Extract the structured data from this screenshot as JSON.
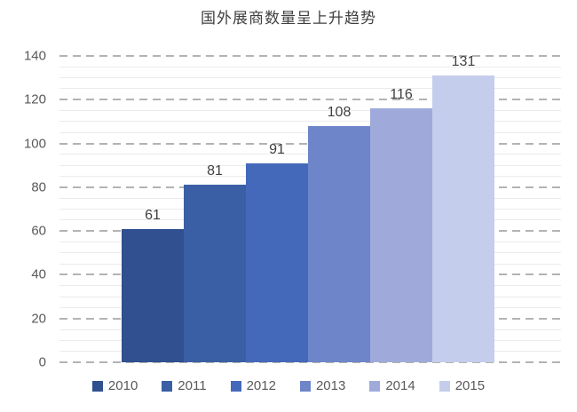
{
  "title": "国外展商数量呈上升趋势",
  "chart_data": {
    "type": "bar",
    "title": "国外展商数量呈上升趋势",
    "categories": [
      "2010",
      "2011",
      "2012",
      "2013",
      "2014",
      "2015"
    ],
    "values": [
      61,
      81,
      91,
      108,
      116,
      131
    ],
    "data_labels": [
      "61",
      "81",
      "91",
      "108",
      "116",
      "131"
    ],
    "bar_colors": [
      "#30508f",
      "#3a5fa5",
      "#4469ba",
      "#6e85c9",
      "#9faadb",
      "#c5cdec"
    ],
    "xlabel": "",
    "ylabel": "",
    "ylim": [
      0,
      140
    ],
    "y_ticks": [
      0,
      20,
      40,
      60,
      80,
      100,
      120,
      140
    ],
    "y_minor_step": 5,
    "grid": true,
    "legend_position": "bottom",
    "legend_entries": [
      "2010",
      "2011",
      "2012",
      "2013",
      "2014",
      "2015"
    ]
  },
  "colors": {
    "background": "#ffffff",
    "major_gridline": "#b3b3b3",
    "minor_gridline": "#ebebeb",
    "axis_text": "#595959",
    "value_label_text": "#3f3f3f",
    "title_text": "#404040",
    "legend_text": "#595959"
  }
}
